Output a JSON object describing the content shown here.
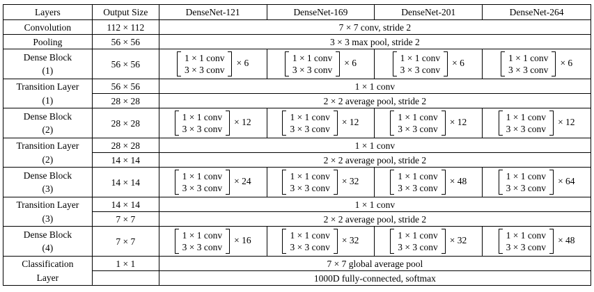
{
  "header": {
    "layers": "Layers",
    "output_size": "Output Size",
    "models": [
      "DenseNet-121",
      "DenseNet-169",
      "DenseNet-201",
      "DenseNet-264"
    ]
  },
  "conv_unit": {
    "line1": "1 × 1 conv",
    "line2": "3 × 3 conv"
  },
  "rows": {
    "convolution": {
      "layer": "Convolution",
      "size": "112 × 112",
      "spec": "7 × 7 conv, stride 2"
    },
    "pooling": {
      "layer": "Pooling",
      "size": "56 × 56",
      "spec": "3 × 3 max pool, stride 2"
    },
    "dense1": {
      "layer_line1": "Dense Block",
      "layer_line2": "(1)",
      "size": "56 × 56",
      "mult": [
        "× 6",
        "× 6",
        "× 6",
        "× 6"
      ]
    },
    "trans1": {
      "layer_line1": "Transition Layer",
      "layer_line2": "(1)",
      "size_a": "56 × 56",
      "spec_a": "1 × 1 conv",
      "size_b": "28 × 28",
      "spec_b": "2 × 2 average pool, stride 2"
    },
    "dense2": {
      "layer_line1": "Dense Block",
      "layer_line2": "(2)",
      "size": "28 × 28",
      "mult": [
        "× 12",
        "× 12",
        "× 12",
        "× 12"
      ]
    },
    "trans2": {
      "layer_line1": "Transition Layer",
      "layer_line2": "(2)",
      "size_a": "28 × 28",
      "spec_a": "1 × 1 conv",
      "size_b": "14 × 14",
      "spec_b": "2 × 2 average pool, stride 2"
    },
    "dense3": {
      "layer_line1": "Dense Block",
      "layer_line2": "(3)",
      "size": "14 × 14",
      "mult": [
        "× 24",
        "× 32",
        "× 48",
        "× 64"
      ]
    },
    "trans3": {
      "layer_line1": "Transition Layer",
      "layer_line2": "(3)",
      "size_a": "14 × 14",
      "spec_a": "1 × 1 conv",
      "size_b": "7 × 7",
      "spec_b": "2 × 2 average pool, stride 2"
    },
    "dense4": {
      "layer_line1": "Dense Block",
      "layer_line2": "(4)",
      "size": "7 × 7",
      "mult": [
        "× 16",
        "× 32",
        "× 32",
        "× 48"
      ]
    },
    "classification": {
      "layer_line1": "Classification",
      "layer_line2": "Layer",
      "size_a": "1 × 1",
      "spec_a": "7 × 7 global average pool",
      "size_b": "",
      "spec_b": "1000D fully-connected, softmax"
    }
  }
}
